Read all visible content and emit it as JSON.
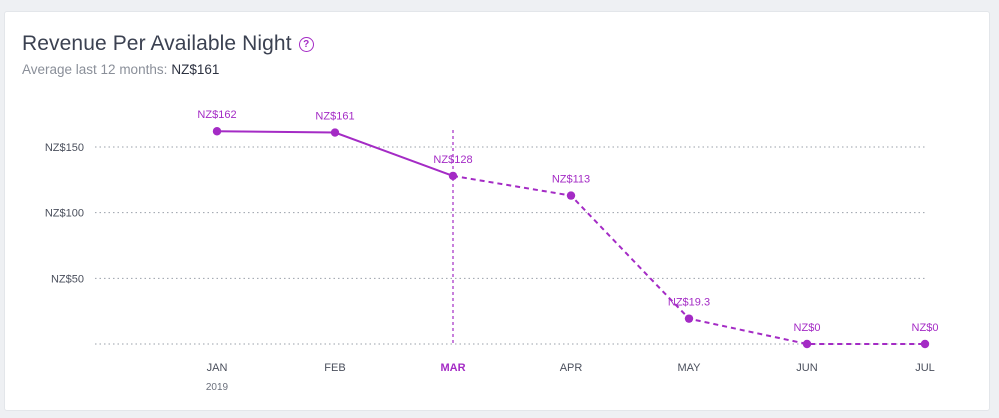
{
  "header": {
    "title": "Revenue Per Available Night",
    "help_icon": "question-circle-icon",
    "subtitle_label": "Average last 12 months:",
    "subtitle_value": "NZ$161"
  },
  "colors": {
    "accent": "#a42bc5",
    "grid": "#9aa0aa",
    "text": "#3b4151"
  },
  "chart_data": {
    "type": "line",
    "categories": [
      "JAN",
      "FEB",
      "MAR",
      "APR",
      "MAY",
      "JUN",
      "JUL"
    ],
    "category_sublabels": [
      "2019",
      "",
      "",
      "",
      "",
      "",
      ""
    ],
    "highlighted_category": "MAR",
    "values": [
      162,
      161,
      128,
      113,
      19.3,
      0,
      0
    ],
    "value_labels": [
      "NZ$162",
      "NZ$161",
      "NZ$128",
      "NZ$113",
      "NZ$19.3",
      "NZ$0",
      "NZ$0"
    ],
    "actual_through": "MAR",
    "projected_from": "MAR",
    "ylim": [
      0,
      150
    ],
    "yticks": [
      0,
      50,
      100,
      150
    ],
    "ytick_labels": [
      "",
      "NZ$50",
      "NZ$100",
      "NZ$150"
    ],
    "grid": true
  }
}
